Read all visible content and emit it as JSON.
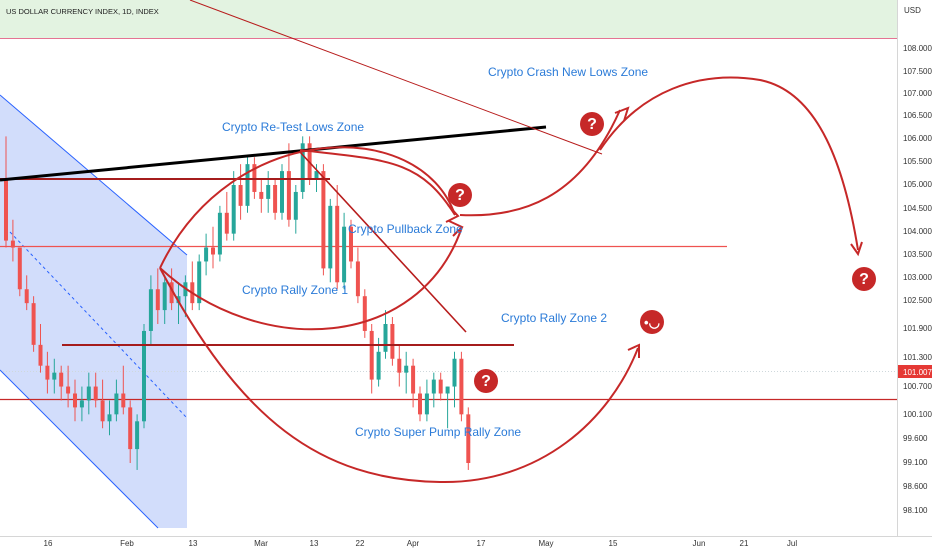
{
  "header": {
    "title": "US DOLLAR CURRENCY INDEX, 1D, INDEX",
    "currency": "USD"
  },
  "chart_data": {
    "type": "candlestick",
    "title": "US DOLLAR CURRENCY INDEX, 1D, INDEX",
    "ylabel": "USD",
    "ylim": [
      97.8,
      108.5
    ],
    "grid": false,
    "y_ticks": [
      "108.000",
      "107.500",
      "107.000",
      "106.500",
      "106.000",
      "105.500",
      "105.000",
      "104.500",
      "104.000",
      "103.500",
      "103.000",
      "102.500",
      "101.900",
      "101.300",
      "100.700",
      "100.100",
      "99.600",
      "99.100",
      "98.600",
      "98.100"
    ],
    "x_ticks": [
      "16",
      "Feb",
      "13",
      "Mar",
      "13",
      "22",
      "Apr",
      "17",
      "May",
      "15",
      "Jun",
      "21",
      "Jul"
    ],
    "last_price": "101.007",
    "series": [
      {
        "values": [
          [
            105.1,
            105.7,
            104.1,
            104.2
          ],
          [
            104.2,
            104.5,
            103.9,
            104.1
          ],
          [
            104.1,
            104.1,
            103.4,
            103.5
          ],
          [
            103.5,
            103.7,
            103.2,
            103.3
          ],
          [
            103.3,
            103.4,
            102.6,
            102.7
          ],
          [
            102.7,
            103.0,
            102.3,
            102.4
          ],
          [
            102.4,
            102.6,
            102.0,
            102.2
          ],
          [
            102.2,
            102.5,
            102.0,
            102.3
          ],
          [
            102.3,
            102.4,
            101.9,
            102.1
          ],
          [
            102.1,
            102.4,
            101.8,
            102.0
          ],
          [
            102.0,
            102.2,
            101.6,
            101.8
          ],
          [
            101.8,
            102.1,
            101.6,
            101.9
          ],
          [
            101.9,
            102.3,
            101.7,
            102.1
          ],
          [
            102.1,
            102.3,
            101.8,
            101.9
          ],
          [
            101.9,
            102.2,
            101.5,
            101.6
          ],
          [
            101.6,
            101.9,
            101.4,
            101.7
          ],
          [
            101.7,
            102.2,
            101.6,
            102.0
          ],
          [
            102.0,
            102.4,
            101.7,
            101.8
          ],
          [
            101.8,
            101.9,
            101.0,
            101.2
          ],
          [
            101.2,
            101.7,
            100.9,
            101.6
          ],
          [
            101.6,
            103.0,
            101.5,
            102.9
          ],
          [
            102.9,
            103.7,
            102.7,
            103.5
          ],
          [
            103.5,
            103.8,
            103.0,
            103.2
          ],
          [
            103.2,
            103.7,
            103.0,
            103.6
          ],
          [
            103.6,
            103.8,
            103.2,
            103.3
          ],
          [
            103.3,
            103.6,
            103.0,
            103.4
          ],
          [
            103.4,
            103.7,
            103.1,
            103.6
          ],
          [
            103.6,
            103.9,
            103.2,
            103.3
          ],
          [
            103.3,
            104.0,
            103.2,
            103.9
          ],
          [
            103.9,
            104.3,
            103.7,
            104.1
          ],
          [
            104.1,
            104.4,
            103.8,
            104.0
          ],
          [
            104.0,
            104.7,
            103.9,
            104.6
          ],
          [
            104.6,
            104.9,
            104.2,
            104.3
          ],
          [
            104.3,
            105.2,
            104.2,
            105.0
          ],
          [
            105.0,
            105.3,
            104.5,
            104.7
          ],
          [
            104.7,
            105.4,
            104.6,
            105.3
          ],
          [
            105.3,
            105.4,
            104.8,
            104.9
          ],
          [
            104.9,
            105.1,
            104.6,
            104.8
          ],
          [
            104.8,
            105.2,
            104.6,
            105.0
          ],
          [
            105.0,
            105.1,
            104.5,
            104.6
          ],
          [
            104.6,
            105.3,
            104.5,
            105.2
          ],
          [
            105.2,
            105.6,
            104.4,
            104.5
          ],
          [
            104.5,
            105.0,
            104.3,
            104.9
          ],
          [
            104.9,
            105.7,
            104.8,
            105.6
          ],
          [
            105.6,
            105.7,
            105.0,
            105.1
          ],
          [
            105.1,
            105.3,
            104.9,
            105.2
          ],
          [
            105.2,
            105.3,
            103.7,
            103.8
          ],
          [
            103.8,
            104.8,
            103.6,
            104.7
          ],
          [
            104.7,
            105.0,
            103.5,
            103.6
          ],
          [
            103.6,
            104.6,
            103.5,
            104.4
          ],
          [
            104.4,
            104.5,
            103.8,
            103.9
          ],
          [
            103.9,
            104.1,
            103.3,
            103.4
          ],
          [
            103.4,
            103.5,
            102.8,
            102.9
          ],
          [
            102.9,
            103.0,
            102.0,
            102.2
          ],
          [
            102.2,
            102.8,
            102.1,
            102.6
          ],
          [
            102.6,
            103.2,
            102.5,
            103.0
          ],
          [
            103.0,
            103.1,
            102.4,
            102.5
          ],
          [
            102.5,
            102.7,
            102.1,
            102.3
          ],
          [
            102.3,
            102.6,
            102.0,
            102.4
          ],
          [
            102.4,
            102.5,
            101.8,
            102.0
          ],
          [
            102.0,
            102.1,
            101.6,
            101.7
          ],
          [
            101.7,
            102.2,
            101.6,
            102.0
          ],
          [
            102.0,
            102.3,
            101.8,
            102.2
          ],
          [
            102.2,
            102.3,
            101.9,
            102.0
          ],
          [
            102.0,
            102.1,
            101.5,
            102.1
          ],
          [
            102.1,
            102.6,
            101.8,
            102.5
          ],
          [
            102.5,
            102.6,
            101.6,
            101.7
          ],
          [
            101.7,
            101.8,
            100.9,
            101.0
          ]
        ]
      }
    ],
    "annotations": [
      "Crypto Crash  New Lows Zone",
      "Crypto Re-Test Lows Zone",
      "Crypto Pullback Zone",
      "Crypto Rally Zone 1",
      "Crypto Rally Zone 2",
      "Crypto Super Pump Rally Zone",
      "?",
      "?",
      "?",
      "?"
    ]
  },
  "colors": {
    "bull": "#26a69a",
    "bear": "#ef5350",
    "drawing": "#c62828",
    "zone_text": "#2b7bd8",
    "channel_fill": "#d2ddfb",
    "top_zone_fill": "#e3f3e1"
  }
}
